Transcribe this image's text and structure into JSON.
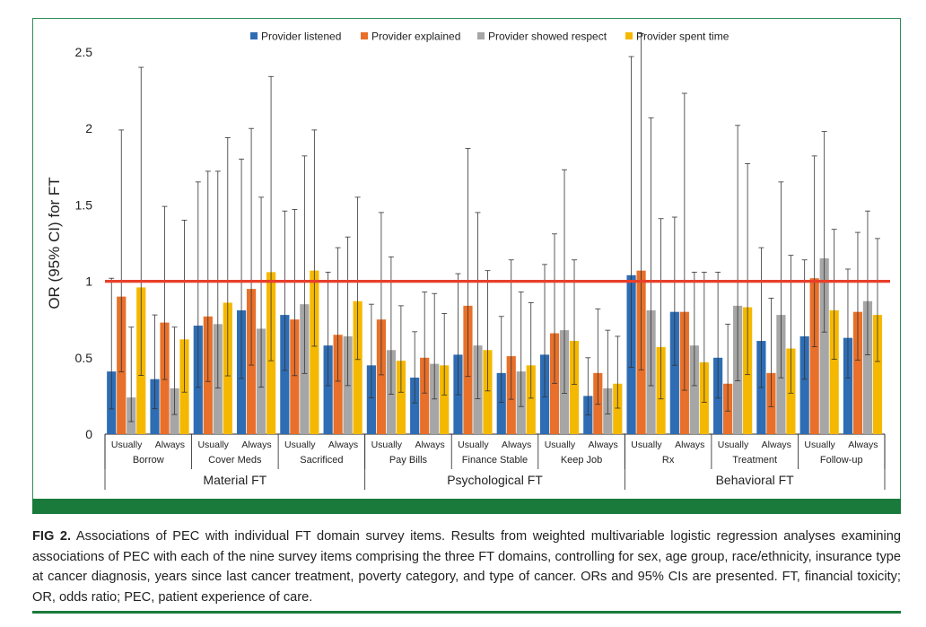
{
  "chart_data": {
    "type": "bar",
    "ylabel": "OR (95% CI) for FT",
    "ylim": [
      0,
      2.5
    ],
    "yticks": [
      "0",
      "0.5",
      "1",
      "1.5",
      "2",
      "2.5"
    ],
    "reference_line": 1,
    "legend": {
      "placement": "top-center",
      "entries": [
        "Provider listened",
        "Provider explained",
        "Provider showed respect",
        "Provider spent time"
      ]
    },
    "colors": [
      "#2e6db4",
      "#e8702a",
      "#a6a6a6",
      "#f5b800"
    ],
    "ref_color": "#e8402a",
    "domains": [
      {
        "label": "Material FT",
        "groups": [
          "Borrow",
          "Cover Meds",
          "Sacrificed"
        ]
      },
      {
        "label": "Psychological FT",
        "groups": [
          "Pay Bills",
          "Finance Stable",
          "Keep Job"
        ]
      },
      {
        "label": "Behavioral FT",
        "groups": [
          "Rx",
          "Treatment",
          "Follow-up"
        ]
      }
    ],
    "categories": [
      {
        "sub": "Usually",
        "group": "Borrow"
      },
      {
        "sub": "Always",
        "group": "Borrow"
      },
      {
        "sub": "Usually",
        "group": "Cover Meds"
      },
      {
        "sub": "Always",
        "group": "Cover Meds"
      },
      {
        "sub": "Usually",
        "group": "Sacrificed"
      },
      {
        "sub": "Always",
        "group": "Sacrificed"
      },
      {
        "sub": "Usually",
        "group": "Pay Bills"
      },
      {
        "sub": "Always",
        "group": "Pay Bills"
      },
      {
        "sub": "Usually",
        "group": "Finance Stable"
      },
      {
        "sub": "Always",
        "group": "Finance Stable"
      },
      {
        "sub": "Usually",
        "group": "Keep Job"
      },
      {
        "sub": "Always",
        "group": "Keep Job"
      },
      {
        "sub": "Usually",
        "group": "Rx"
      },
      {
        "sub": "Always",
        "group": "Rx"
      },
      {
        "sub": "Usually",
        "group": "Treatment"
      },
      {
        "sub": "Always",
        "group": "Treatment"
      },
      {
        "sub": "Usually",
        "group": "Follow-up"
      },
      {
        "sub": "Always",
        "group": "Follow-up"
      }
    ],
    "series": [
      {
        "name": "Provider listened",
        "values": [
          0.41,
          0.36,
          0.71,
          0.81,
          0.78,
          0.58,
          0.45,
          0.37,
          0.52,
          0.4,
          0.52,
          0.25,
          1.04,
          0.8,
          0.5,
          0.61,
          0.64,
          0.63
        ],
        "ci_upper": [
          1.02,
          0.78,
          1.65,
          1.8,
          1.46,
          1.06,
          0.85,
          0.67,
          1.05,
          0.77,
          1.11,
          0.5,
          2.47,
          1.42,
          1.06,
          1.22,
          1.14,
          1.08
        ]
      },
      {
        "name": "Provider explained",
        "values": [
          0.9,
          0.73,
          0.77,
          0.95,
          0.75,
          0.65,
          0.75,
          0.5,
          0.84,
          0.51,
          0.66,
          0.4,
          1.07,
          0.8,
          0.33,
          0.4,
          1.02,
          0.8
        ],
        "ci_upper": [
          1.99,
          1.49,
          1.72,
          2.0,
          1.47,
          1.22,
          1.45,
          0.93,
          1.87,
          1.14,
          1.31,
          0.82,
          2.72,
          2.23,
          0.72,
          0.89,
          1.82,
          1.32
        ]
      },
      {
        "name": "Provider showed respect",
        "values": [
          0.24,
          0.3,
          0.72,
          0.69,
          0.85,
          0.64,
          0.55,
          0.46,
          0.58,
          0.41,
          0.68,
          0.3,
          0.81,
          0.58,
          0.84,
          0.78,
          1.15,
          0.87
        ],
        "ci_upper": [
          0.7,
          0.7,
          1.72,
          1.55,
          1.82,
          1.29,
          1.16,
          0.92,
          1.45,
          0.93,
          1.73,
          0.68,
          2.07,
          1.06,
          2.02,
          1.65,
          1.98,
          1.46
        ]
      },
      {
        "name": "Provider spent time",
        "values": [
          0.96,
          0.62,
          0.86,
          1.06,
          1.07,
          0.87,
          0.48,
          0.45,
          0.55,
          0.45,
          0.61,
          0.33,
          0.57,
          0.47,
          0.83,
          0.56,
          0.81,
          0.78
        ],
        "ci_upper": [
          2.4,
          1.4,
          1.94,
          2.34,
          1.99,
          1.55,
          0.84,
          0.79,
          1.07,
          0.86,
          1.14,
          0.64,
          1.41,
          1.06,
          1.77,
          1.17,
          1.34,
          1.28
        ]
      }
    ]
  },
  "caption": {
    "label": "FIG 2.",
    "text": "Associations of PEC with individual FT domain survey items. Results from weighted multivariable logistic regression analyses examining associations of PEC with each of the nine survey items comprising the three FT domains, controlling for sex, age group, race/ethnicity, insurance type at cancer diagnosis, years since last cancer treatment, poverty category, and type of cancer. ORs and 95% CIs are presented. FT, financial toxicity; OR, odds ratio; PEC, patient experience of care."
  }
}
